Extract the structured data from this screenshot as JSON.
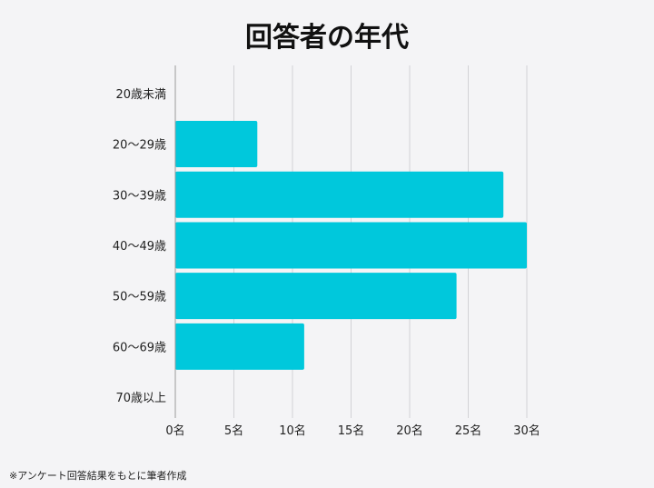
{
  "chart_data": {
    "type": "bar",
    "orientation": "horizontal",
    "title": "回答者の年代",
    "categories": [
      "20歳未満",
      "20〜29歳",
      "30〜39歳",
      "40〜49歳",
      "50〜59歳",
      "60〜69歳",
      "70歳以上"
    ],
    "values": [
      0,
      7,
      28,
      30,
      24,
      11,
      0
    ],
    "x_ticks": [
      0,
      5,
      10,
      15,
      20,
      25,
      30
    ],
    "x_tick_labels": [
      "0名",
      "5名",
      "10名",
      "15名",
      "20名",
      "25名",
      "30名"
    ],
    "xlim": [
      0,
      30
    ],
    "grid": true,
    "bar_color": "#00c8dc"
  },
  "footnote": "※アンケート回答結果をもとに筆者作成"
}
